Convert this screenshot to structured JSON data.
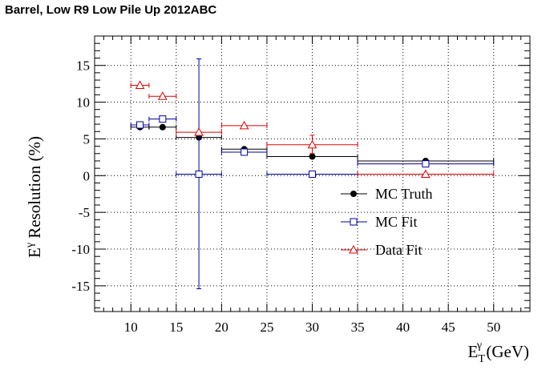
{
  "chart_data": {
    "type": "scatter",
    "title": "Barrel, Low R9 Low Pile Up 2012ABC",
    "ylabel_main": "E",
    "ylabel_sup": "γ",
    "ylabel_rest": " Resolution (%)",
    "xlabel_main": "E",
    "xlabel_sub": "T",
    "xlabel_sup": "γ",
    "xlabel_rest": " (GeV)",
    "xlim": [
      6,
      54
    ],
    "ylim": [
      -18.5,
      19
    ],
    "xticks": [
      10,
      15,
      20,
      25,
      30,
      35,
      40,
      45,
      50
    ],
    "yticks": [
      -15,
      -10,
      -5,
      0,
      5,
      10,
      15
    ],
    "grid": true,
    "legend_position": "center-right",
    "series": [
      {
        "name": "MC Truth",
        "color": "#000000",
        "marker": "filled-circle",
        "points": [
          {
            "x": 11.0,
            "xlo": 10,
            "xhi": 12,
            "y": 6.6,
            "ylo": 6.6,
            "yhi": 6.6
          },
          {
            "x": 13.5,
            "xlo": 12,
            "xhi": 15,
            "y": 6.6,
            "ylo": 6.6,
            "yhi": 6.6
          },
          {
            "x": 17.5,
            "xlo": 15,
            "xhi": 20,
            "y": 5.2,
            "ylo": 5.2,
            "yhi": 5.2
          },
          {
            "x": 22.5,
            "xlo": 20,
            "xhi": 25,
            "y": 3.6,
            "ylo": 3.6,
            "yhi": 3.6
          },
          {
            "x": 30.0,
            "xlo": 25,
            "xhi": 35,
            "y": 2.6,
            "ylo": 2.6,
            "yhi": 2.6
          },
          {
            "x": 42.5,
            "xlo": 35,
            "xhi": 50,
            "y": 2.0,
            "ylo": 2.0,
            "yhi": 2.0
          }
        ]
      },
      {
        "name": "MC Fit",
        "color": "#00009c",
        "marker": "open-square",
        "points": [
          {
            "x": 11.0,
            "xlo": 10,
            "xhi": 12,
            "y": 6.9,
            "ylo": 6.9,
            "yhi": 6.9
          },
          {
            "x": 13.5,
            "xlo": 12,
            "xhi": 15,
            "y": 7.7,
            "ylo": 7.7,
            "yhi": 7.7
          },
          {
            "x": 17.5,
            "xlo": 15,
            "xhi": 20,
            "y": 0.2,
            "ylo": -15.4,
            "yhi": 15.9
          },
          {
            "x": 22.5,
            "xlo": 20,
            "xhi": 25,
            "y": 3.2,
            "ylo": 3.2,
            "yhi": 3.2
          },
          {
            "x": 30.0,
            "xlo": 25,
            "xhi": 35,
            "y": 0.2,
            "ylo": 0.2,
            "yhi": 0.2
          },
          {
            "x": 42.5,
            "xlo": 35,
            "xhi": 50,
            "y": 1.6,
            "ylo": 1.6,
            "yhi": 1.6
          }
        ]
      },
      {
        "name": "Data Fit",
        "color": "#dd0000",
        "marker": "open-triangle",
        "points": [
          {
            "x": 11.0,
            "xlo": 10,
            "xhi": 12,
            "y": 12.3,
            "ylo": 12.3,
            "yhi": 12.3
          },
          {
            "x": 13.5,
            "xlo": 12,
            "xhi": 15,
            "y": 10.8,
            "ylo": 10.8,
            "yhi": 10.8
          },
          {
            "x": 17.5,
            "xlo": 15,
            "xhi": 20,
            "y": 5.9,
            "ylo": 5.9,
            "yhi": 5.9
          },
          {
            "x": 22.5,
            "xlo": 20,
            "xhi": 25,
            "y": 6.8,
            "ylo": 6.8,
            "yhi": 6.8
          },
          {
            "x": 30.0,
            "xlo": 25,
            "xhi": 35,
            "y": 4.2,
            "ylo": 3.0,
            "yhi": 5.5
          },
          {
            "x": 42.5,
            "xlo": 35,
            "xhi": 50,
            "y": 0.2,
            "ylo": 0.2,
            "yhi": 0.2
          }
        ]
      }
    ]
  }
}
